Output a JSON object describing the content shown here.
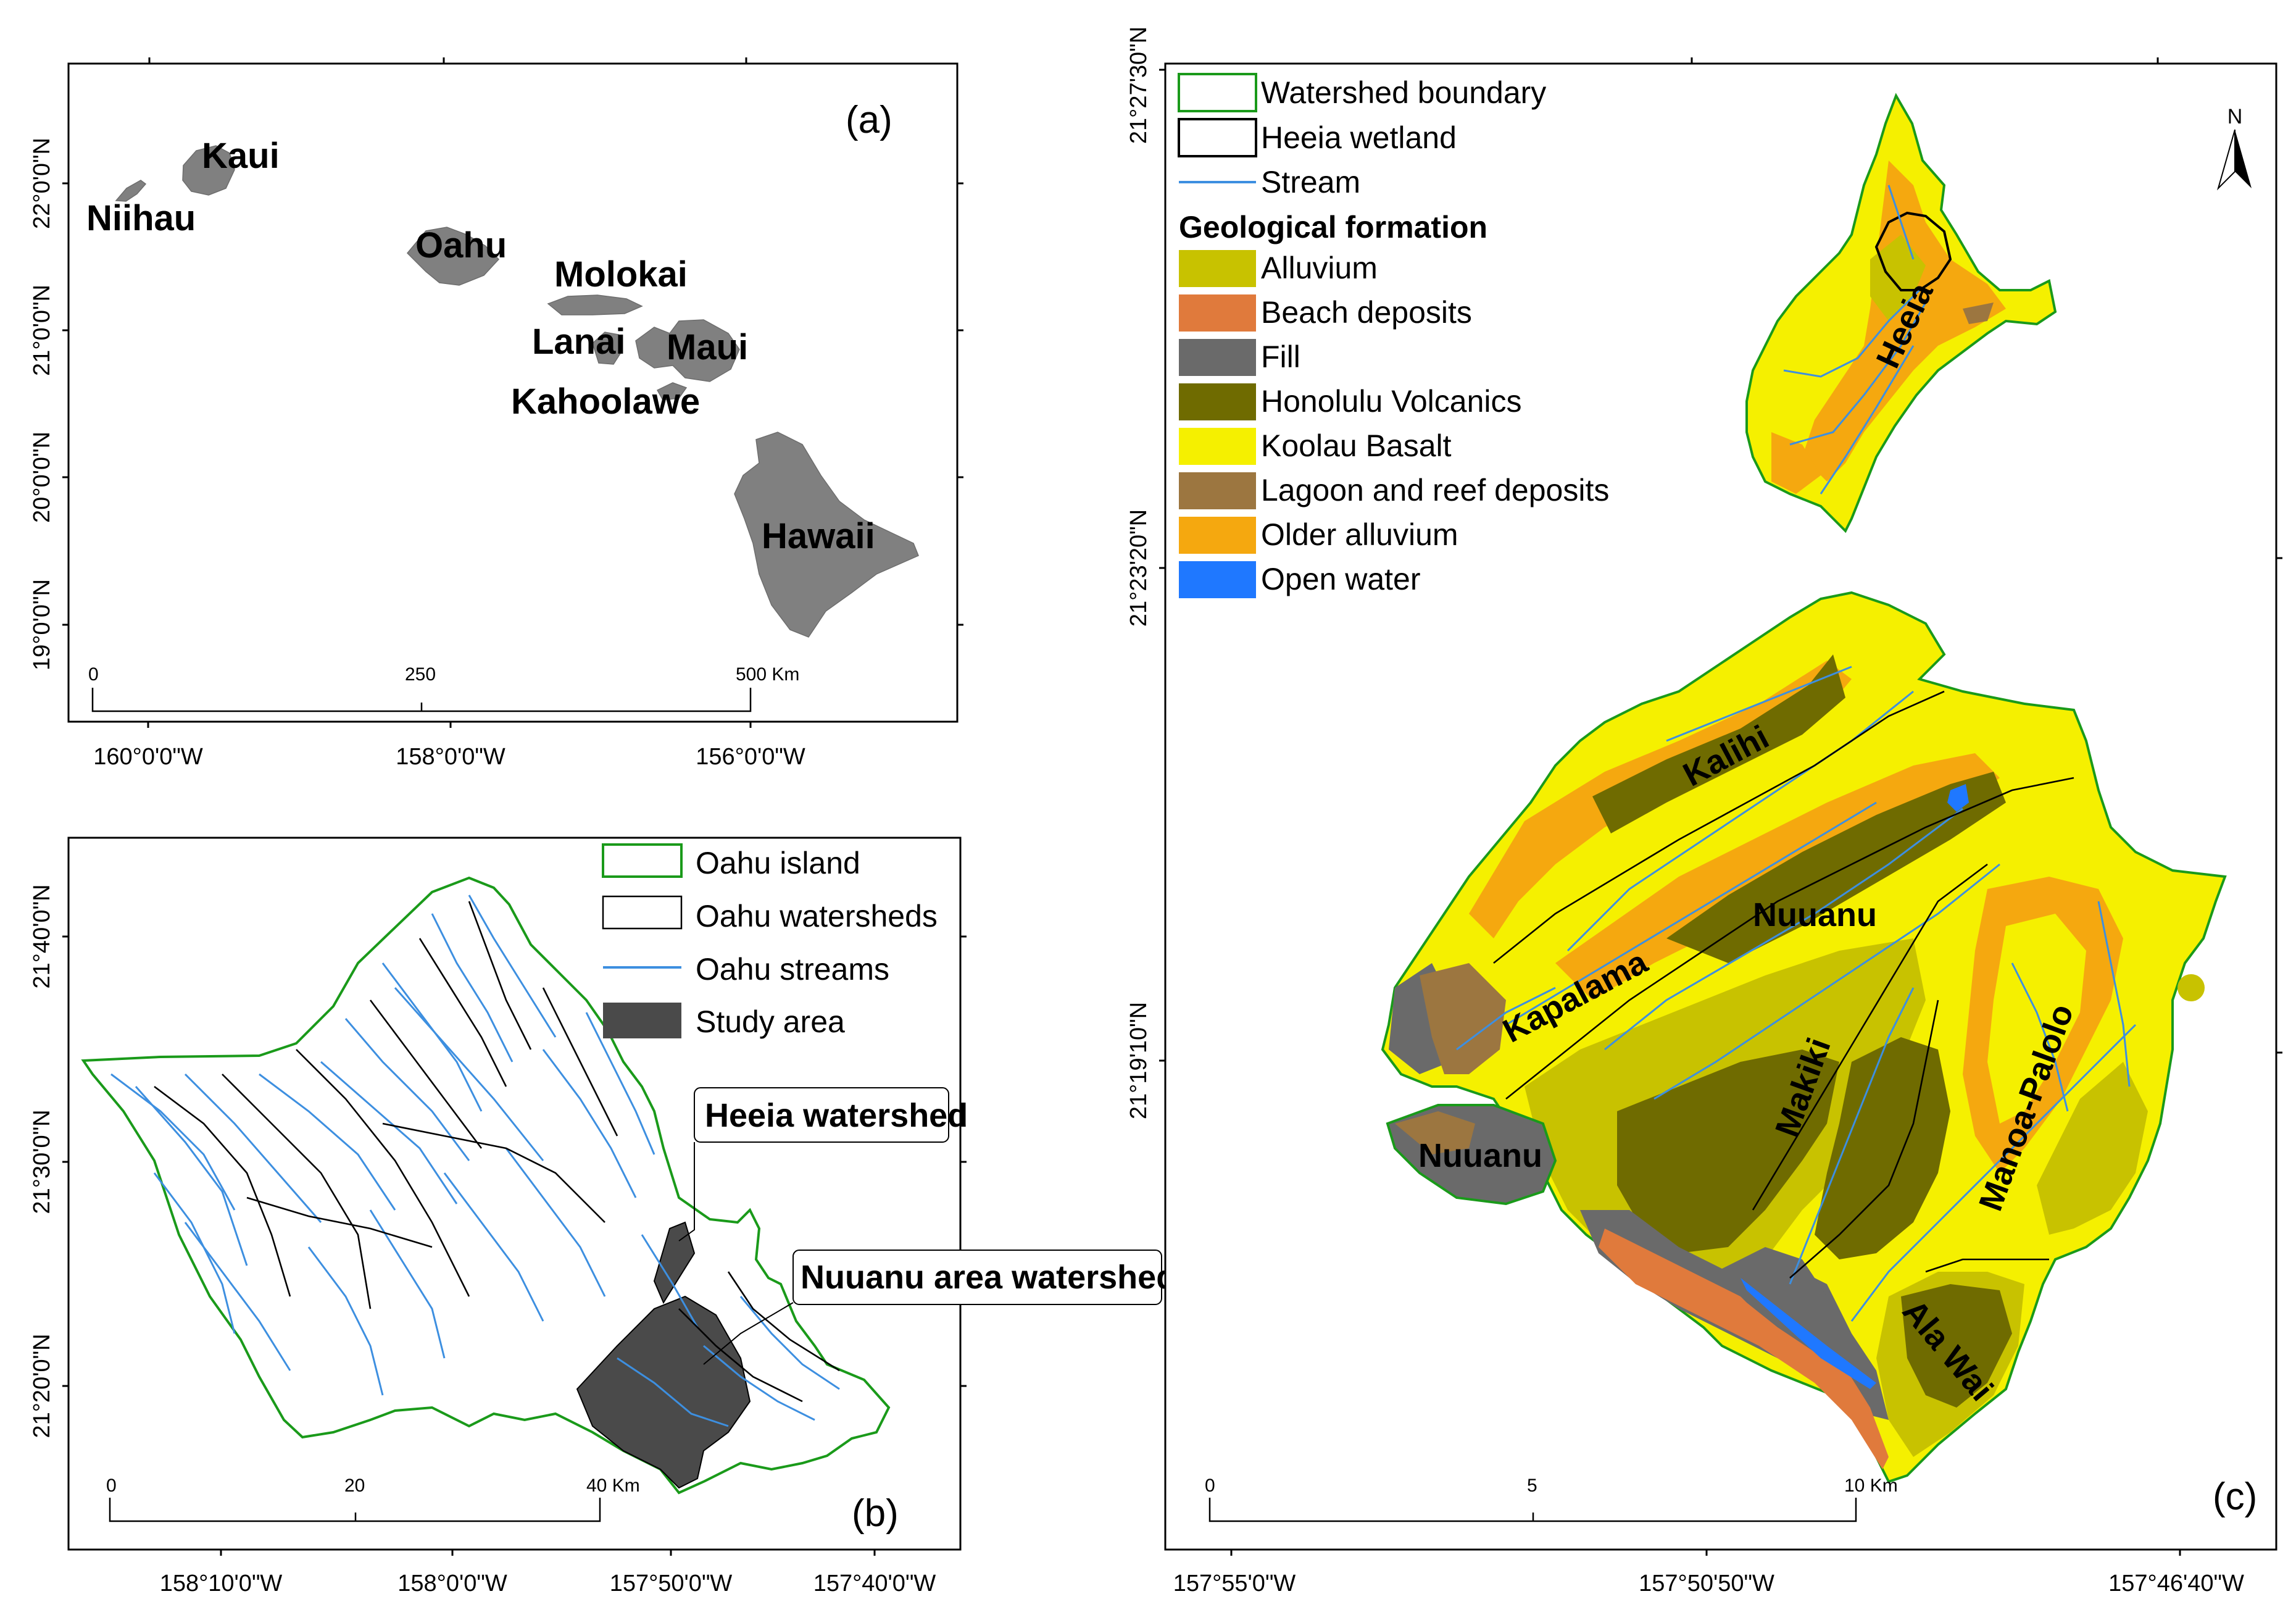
{
  "panel_a": {
    "label": "(a)",
    "islands": [
      "Kaui",
      "Niihau",
      "Oahu",
      "Molokai",
      "Lanai",
      "Maui",
      "Kahoolawe",
      "Hawaii"
    ],
    "lat_labels": [
      "22°0'0\"N",
      "21°0'0\"N",
      "20°0'0\"N",
      "19°0'0\"N"
    ],
    "lon_labels": [
      "160°0'0\"W",
      "158°0'0\"W",
      "156°0'0\"W"
    ],
    "scale": [
      "0",
      "250",
      "500 Km"
    ]
  },
  "panel_b": {
    "label": "(b)",
    "legend": [
      "Oahu island",
      "Oahu watersheds",
      "Oahu streams",
      "Study area"
    ],
    "callouts": [
      "Heeia watershed",
      "Nuuanu area watersheds"
    ],
    "lat_labels": [
      "21°40'0\"N",
      "21°30'0\"N",
      "21°20'0\"N"
    ],
    "lon_labels": [
      "158°10'0\"W",
      "158°0'0\"W",
      "157°50'0\"W",
      "157°40'0\"W"
    ],
    "scale": [
      "0",
      "20",
      "40 Km"
    ]
  },
  "panel_c": {
    "label": "(c)",
    "legend_lines": [
      "Watershed boundary",
      "Heeia wetland",
      "Stream"
    ],
    "legend_heading": "Geological formation",
    "geology": [
      {
        "name": "Alluvium",
        "color": "#c8c200"
      },
      {
        "name": "Beach deposits",
        "color": "#e07a3c"
      },
      {
        "name": "Fill",
        "color": "#6a6a6a"
      },
      {
        "name": "Honolulu Volcanics",
        "color": "#6f6b00"
      },
      {
        "name": "Koolau Basalt",
        "color": "#f5f000"
      },
      {
        "name": "Lagoon and reef deposits",
        "color": "#9c7640"
      },
      {
        "name": "Older alluvium",
        "color": "#f5a80f"
      },
      {
        "name": "Open water",
        "color": "#1f78ff"
      }
    ],
    "watersheds": [
      "Heeia",
      "Kalihi",
      "Nuuanu",
      "Kapalama",
      "Nuuanu",
      "Makiki",
      "Manoa-Palolo",
      "Ala Wai"
    ],
    "north": "N",
    "lat_labels": [
      "21°27'30\"N",
      "21°23'20\"N",
      "21°19'10\"N"
    ],
    "lon_labels": [
      "157°55'0\"W",
      "157°50'50\"W",
      "157°46'40\"W"
    ],
    "scale": [
      "0",
      "5",
      "10 Km"
    ]
  }
}
